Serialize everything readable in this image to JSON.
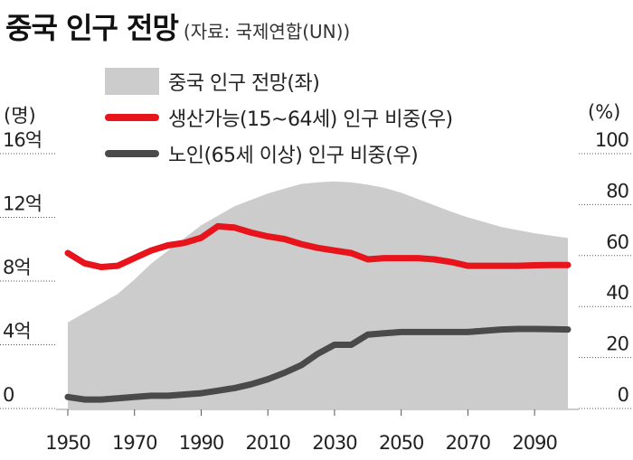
{
  "title": "중국 인구 전망",
  "source": "(자료: 국제연합(UN))",
  "legend": {
    "area": "중국 인구 전망(좌)",
    "working": "생산가능(15~64세) 인구 비중(우)",
    "elderly": "노인(65세 이상) 인구 비중(우)"
  },
  "left_unit": "(명)",
  "right_unit": "(%)",
  "colors": {
    "area": "#cccccc",
    "working": "#e8141c",
    "elderly": "#4a4a4a"
  },
  "chart_data": {
    "type": "area",
    "x_ticks": [
      "1950",
      "1970",
      "1990",
      "2010",
      "2030",
      "2050",
      "2070",
      "2090"
    ],
    "y_left": {
      "range": [
        0,
        16
      ],
      "ticks": [
        "0",
        "4억",
        "8억",
        "12억",
        "16억"
      ]
    },
    "y_right": {
      "range": [
        0,
        100
      ],
      "ticks": [
        "0",
        "20",
        "40",
        "60",
        "80",
        "100"
      ]
    },
    "grid": false,
    "series": [
      {
        "name": "중국 인구 전망(좌)",
        "axis": "left",
        "kind": "area",
        "points": [
          [
            1950,
            5.4
          ],
          [
            1955,
            6.0
          ],
          [
            1960,
            6.6
          ],
          [
            1965,
            7.2
          ],
          [
            1970,
            8.1
          ],
          [
            1975,
            9.1
          ],
          [
            1980,
            9.9
          ],
          [
            1985,
            10.7
          ],
          [
            1990,
            11.5
          ],
          [
            1995,
            12.1
          ],
          [
            2000,
            12.7
          ],
          [
            2005,
            13.1
          ],
          [
            2010,
            13.5
          ],
          [
            2015,
            13.8
          ],
          [
            2020,
            14.1
          ],
          [
            2025,
            14.2
          ],
          [
            2030,
            14.25
          ],
          [
            2035,
            14.2
          ],
          [
            2040,
            14.05
          ],
          [
            2045,
            13.85
          ],
          [
            2050,
            13.55
          ],
          [
            2055,
            13.15
          ],
          [
            2060,
            12.75
          ],
          [
            2065,
            12.35
          ],
          [
            2070,
            12.0
          ],
          [
            2075,
            11.7
          ],
          [
            2080,
            11.4
          ],
          [
            2085,
            11.2
          ],
          [
            2090,
            11.0
          ],
          [
            2095,
            10.85
          ],
          [
            2100,
            10.7
          ]
        ]
      },
      {
        "name": "생산가능(15~64세) 인구 비중(우)",
        "axis": "right",
        "kind": "line",
        "points": [
          [
            1950,
            61
          ],
          [
            1955,
            57
          ],
          [
            1960,
            55.5
          ],
          [
            1965,
            56
          ],
          [
            1970,
            59
          ],
          [
            1975,
            62
          ],
          [
            1980,
            64
          ],
          [
            1985,
            65
          ],
          [
            1990,
            67
          ],
          [
            1995,
            71.5
          ],
          [
            2000,
            71
          ],
          [
            2005,
            69
          ],
          [
            2010,
            67.5
          ],
          [
            2015,
            66.5
          ],
          [
            2020,
            64.5
          ],
          [
            2025,
            63
          ],
          [
            2030,
            62
          ],
          [
            2035,
            61
          ],
          [
            2040,
            58.5
          ],
          [
            2045,
            59
          ],
          [
            2050,
            59
          ],
          [
            2055,
            59
          ],
          [
            2060,
            58.5
          ],
          [
            2065,
            57.5
          ],
          [
            2070,
            56
          ],
          [
            2075,
            56
          ],
          [
            2080,
            56
          ],
          [
            2085,
            56
          ],
          [
            2090,
            56.2
          ],
          [
            2095,
            56.3
          ],
          [
            2100,
            56.3
          ]
        ]
      },
      {
        "name": "노인(65세 이상) 인구 비중(우)",
        "axis": "right",
        "kind": "line",
        "points": [
          [
            1950,
            4.5
          ],
          [
            1955,
            3.5
          ],
          [
            1960,
            3.5
          ],
          [
            1965,
            4
          ],
          [
            1970,
            4.5
          ],
          [
            1975,
            5
          ],
          [
            1980,
            5
          ],
          [
            1985,
            5.5
          ],
          [
            1990,
            6
          ],
          [
            1995,
            7
          ],
          [
            2000,
            8
          ],
          [
            2005,
            9.5
          ],
          [
            2010,
            11.5
          ],
          [
            2015,
            14
          ],
          [
            2020,
            17
          ],
          [
            2025,
            21.5
          ],
          [
            2030,
            25
          ],
          [
            2035,
            25
          ],
          [
            2040,
            29
          ],
          [
            2045,
            29.5
          ],
          [
            2050,
            30
          ],
          [
            2055,
            30
          ],
          [
            2060,
            30
          ],
          [
            2065,
            30
          ],
          [
            2070,
            30
          ],
          [
            2075,
            30.5
          ],
          [
            2080,
            31
          ],
          [
            2085,
            31.2
          ],
          [
            2090,
            31.2
          ],
          [
            2095,
            31.1
          ],
          [
            2100,
            31
          ]
        ]
      }
    ]
  }
}
